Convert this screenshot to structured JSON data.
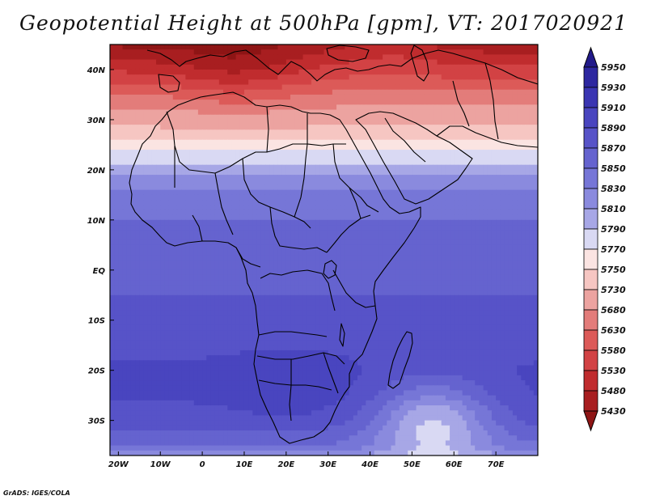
{
  "title": "Geopotential Height at 500hPa [gpm], VT: 2017020921",
  "credit": "GrADS: IGES/COLA",
  "chart_data": {
    "type": "heatmap",
    "title": "Geopotential Height at 500hPa [gpm], VT: 2017020921",
    "units": "gpm",
    "xlim": [
      -22,
      80
    ],
    "ylim": [
      -37,
      45
    ],
    "x_ticks": [
      {
        "value": -20,
        "label": "20W"
      },
      {
        "value": -10,
        "label": "10W"
      },
      {
        "value": 0,
        "label": "0"
      },
      {
        "value": 10,
        "label": "10E"
      },
      {
        "value": 20,
        "label": "20E"
      },
      {
        "value": 30,
        "label": "30E"
      },
      {
        "value": 40,
        "label": "40E"
      },
      {
        "value": 50,
        "label": "50E"
      },
      {
        "value": 60,
        "label": "60E"
      },
      {
        "value": 70,
        "label": "70E"
      }
    ],
    "y_ticks": [
      {
        "value": 40,
        "label": "40N"
      },
      {
        "value": 30,
        "label": "30N"
      },
      {
        "value": 20,
        "label": "20N"
      },
      {
        "value": 10,
        "label": "10N"
      },
      {
        "value": 0,
        "label": "EQ"
      },
      {
        "value": -10,
        "label": "10S"
      },
      {
        "value": -20,
        "label": "20S"
      },
      {
        "value": -30,
        "label": "30S"
      }
    ],
    "colorbar": {
      "levels": [
        5950,
        5930,
        5910,
        5890,
        5870,
        5850,
        5830,
        5810,
        5790,
        5770,
        5750,
        5730,
        5680,
        5630,
        5580,
        5530,
        5480,
        5430
      ],
      "colors": [
        "#221a8a",
        "#2d27a0",
        "#3a35b2",
        "#4945bf",
        "#5753c8",
        "#6563cf",
        "#7676d7",
        "#8a8ade",
        "#a7a7e6",
        "#d9d9f3",
        "#fbe4e2",
        "#f6c6c2",
        "#eca3a0",
        "#e37c7a",
        "#dc5a58",
        "#d24244",
        "#c02c2e",
        "#a81e20",
        "#8e1515"
      ]
    },
    "fields": {
      "zonal_profile": [
        {
          "lat": 45,
          "value": 5450
        },
        {
          "lat": 40,
          "value": 5540
        },
        {
          "lat": 35,
          "value": 5640
        },
        {
          "lat": 30,
          "value": 5720
        },
        {
          "lat": 25,
          "value": 5760
        },
        {
          "lat": 21,
          "value": 5790
        },
        {
          "lat": 18,
          "value": 5820
        },
        {
          "lat": 15,
          "value": 5835
        },
        {
          "lat": 10,
          "value": 5850
        },
        {
          "lat": 5,
          "value": 5860
        },
        {
          "lat": 0,
          "value": 5865
        },
        {
          "lat": -5,
          "value": 5870
        },
        {
          "lat": -10,
          "value": 5875
        },
        {
          "lat": -15,
          "value": 5885
        },
        {
          "lat": -20,
          "value": 5893
        },
        {
          "lat": -25,
          "value": 5893
        },
        {
          "lat": -30,
          "value": 5880
        },
        {
          "lat": -35,
          "value": 5850
        },
        {
          "lat": -37,
          "value": 5820
        }
      ],
      "features": [
        {
          "lon": -15,
          "lat": 45,
          "value": 5420
        },
        {
          "lon": 8,
          "lat": 40,
          "value": 5470
        },
        {
          "lon": 45,
          "lat": 45,
          "value": 5490
        },
        {
          "lon": 20,
          "lat": -24,
          "value": 5905
        },
        {
          "lon": 55,
          "lat": -30,
          "value": 5790
        }
      ]
    }
  }
}
